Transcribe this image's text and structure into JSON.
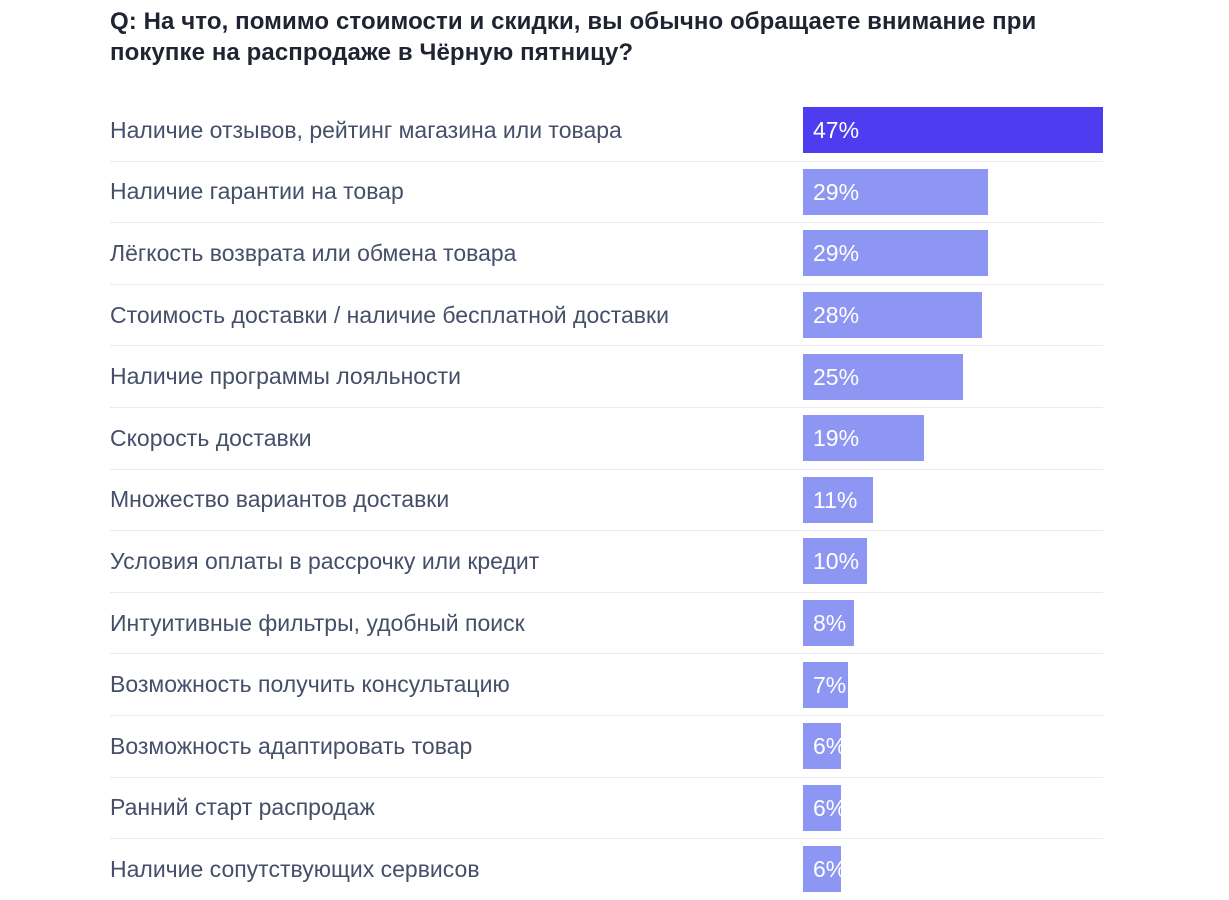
{
  "title": "Q: На что, помимо стоимости и скидки, вы обычно обращаете внимание при покупке на распродаже в Чёрную пятницу?",
  "chart_data": {
    "type": "bar",
    "orientation": "horizontal",
    "title": "Q: На что, помимо стоимости и скидки, вы обычно обращаете внимание при покупке на распродаже в Чёрную пятницу?",
    "categories": [
      "Наличие отзывов, рейтинг магазина или товара",
      "Наличие гарантии на товар",
      "Лёгкость возврата или обмена товара",
      "Стоимость доставки / наличие бесплатной доставки",
      "Наличие программы лояльности",
      "Скорость доставки",
      "Множество вариантов доставки",
      "Условия оплаты в рассрочку или кредит",
      "Интуитивные фильтры, удобный поиск",
      "Возможность получить консультацию",
      "Возможность адаптировать товар",
      "Ранний старт распродаж",
      "Наличие сопутствующих сервисов"
    ],
    "values": [
      47,
      29,
      29,
      28,
      25,
      19,
      11,
      10,
      8,
      7,
      6,
      6,
      6
    ],
    "value_labels": [
      "47%",
      "29%",
      "29%",
      "28%",
      "25%",
      "19%",
      "11%",
      "10%",
      "8%",
      "7%",
      "6%",
      "6%",
      "6%"
    ],
    "value_suffix": "%",
    "xlim": [
      0,
      47
    ],
    "highlight_index": 0,
    "colors": {
      "bar_highlight": "#4e3cf0",
      "bar_default": "#8d96f2",
      "value_text": "#ffffff",
      "label_text": "#454f69",
      "title_text": "#1f2430",
      "separator": "#ebebef"
    },
    "grid": false,
    "legend": false
  }
}
